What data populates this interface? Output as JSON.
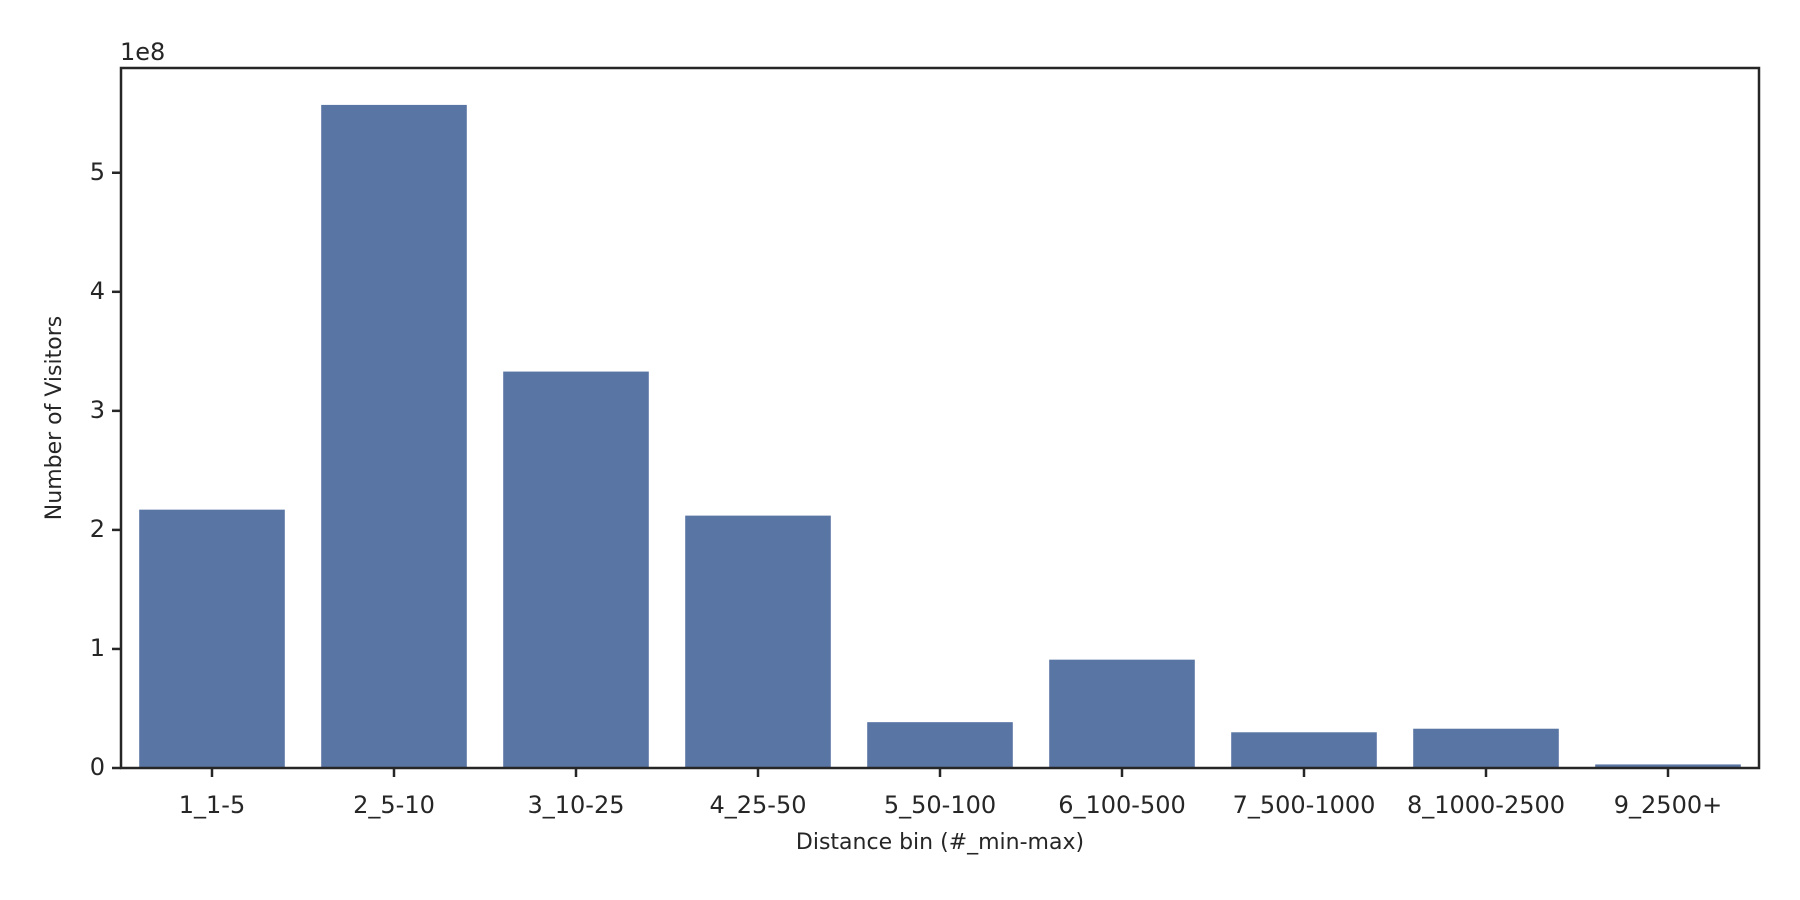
{
  "chart_data": {
    "type": "bar",
    "x_label": "Distance bin (#_min-max)",
    "y_label": "Number of Visitors",
    "y_offset_label": "1e8",
    "categories": [
      "1_1-5",
      "2_5-10",
      "3_10-25",
      "4_25-50",
      "5_50-100",
      "6_100-500",
      "7_500-1000",
      "8_1000-2500",
      "9_2500+"
    ],
    "values": [
      2.17,
      5.57,
      3.33,
      2.12,
      0.385,
      0.91,
      0.3,
      0.33,
      0.03
    ],
    "color": "#5975a4",
    "ylim": [
      0,
      5.88
    ],
    "yticks": [
      0,
      1,
      2,
      3,
      4,
      5
    ],
    "grid": false
  }
}
